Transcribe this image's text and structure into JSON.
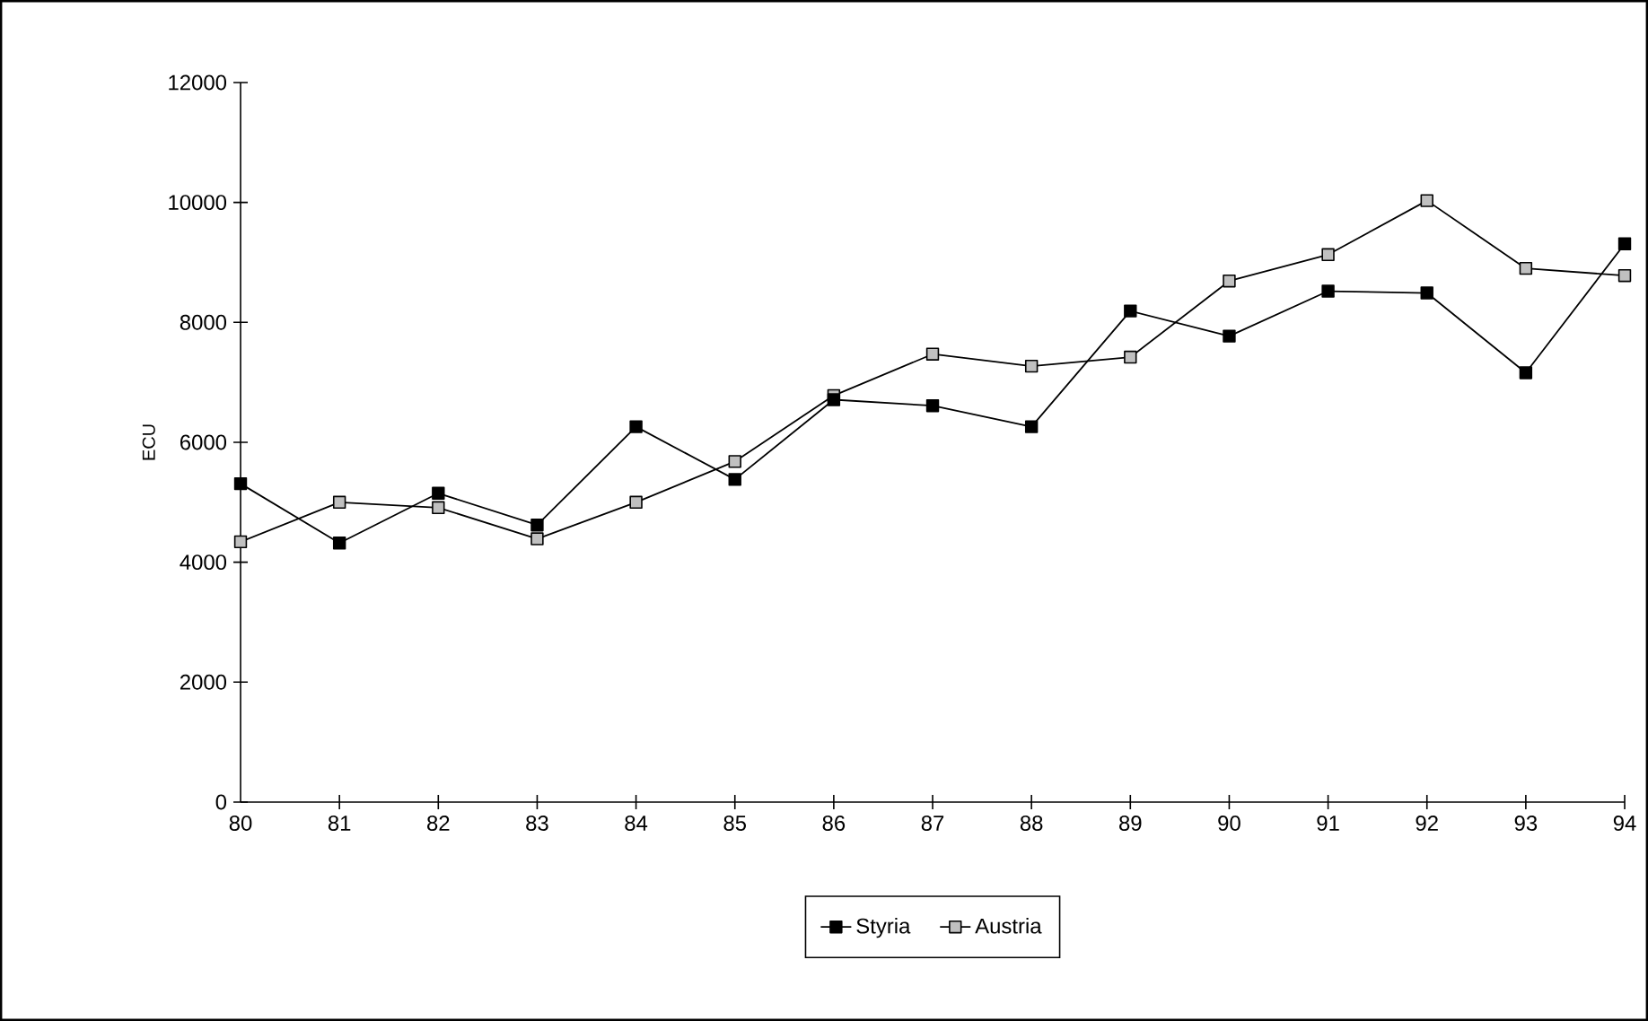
{
  "chart_data": {
    "type": "line",
    "ylabel": "ECU",
    "categories": [
      "80",
      "81",
      "82",
      "83",
      "84",
      "85",
      "86",
      "87",
      "88",
      "89",
      "90",
      "91",
      "92",
      "93",
      "94"
    ],
    "series": [
      {
        "name": "Styria",
        "color": "#000000",
        "values": [
          5310,
          4320,
          5150,
          4620,
          6260,
          5380,
          6710,
          6610,
          6260,
          8190,
          7770,
          8520,
          8490,
          7160,
          9310
        ]
      },
      {
        "name": "Austria",
        "color": "#c0c0c0",
        "values": [
          4340,
          5000,
          4910,
          4390,
          5000,
          5680,
          6780,
          7470,
          7270,
          7420,
          8690,
          9130,
          10030,
          8900,
          8780
        ]
      }
    ],
    "ylim": [
      0,
      12000
    ],
    "yticks": [
      0,
      2000,
      4000,
      6000,
      8000,
      10000,
      12000
    ],
    "grid": false,
    "legend": "bottom",
    "marker": "square",
    "line_style": "solid"
  }
}
